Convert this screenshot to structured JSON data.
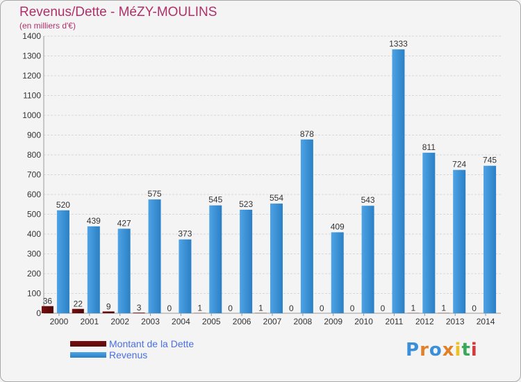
{
  "title": "Revenus/Dette - MéZY-MOULINS",
  "subtitle": "(en milliers d'€)",
  "colors": {
    "dette": "#7a1010",
    "revenus": "#4ea3e6",
    "revenus_dark": "#2b7fc4",
    "title": "#b0306a",
    "legend_text": "#4a6fe0"
  },
  "chart_data": {
    "type": "bar",
    "title": "Revenus/Dette - MéZY-MOULINS",
    "ylabel": "(en milliers d'€)",
    "xlabel": "",
    "ylim": [
      0,
      1400
    ],
    "yticks": [
      0,
      100,
      200,
      300,
      400,
      500,
      600,
      700,
      800,
      900,
      1000,
      1100,
      1200,
      1300,
      1400
    ],
    "grid": true,
    "categories": [
      "2000",
      "2001",
      "2002",
      "2003",
      "2004",
      "2005",
      "2006",
      "2007",
      "2008",
      "2009",
      "2010",
      "2011",
      "2012",
      "2013",
      "2014"
    ],
    "series": [
      {
        "name": "Montant de la Dette",
        "values": [
          36,
          22,
          9,
          3,
          0,
          1,
          0,
          1,
          0,
          0,
          0,
          0,
          1,
          1,
          0
        ]
      },
      {
        "name": "Revenus",
        "values": [
          520,
          439,
          427,
          575,
          373,
          545,
          523,
          554,
          878,
          409,
          543,
          1333,
          811,
          724,
          745
        ]
      }
    ],
    "legend_position": "bottom-left"
  },
  "legend": {
    "items": [
      {
        "label": "Montant de la Dette"
      },
      {
        "label": "Revenus"
      }
    ]
  },
  "logo": {
    "text": "Proxiti",
    "letters": [
      "P",
      "r",
      "o",
      "x",
      "i",
      "t",
      "i"
    ],
    "letter_colors": [
      "#3a8fd8",
      "#e0812a",
      "#3a8fd8",
      "#e0812a",
      "#f0c020",
      "#3aa85a",
      "#d23a3a"
    ]
  }
}
